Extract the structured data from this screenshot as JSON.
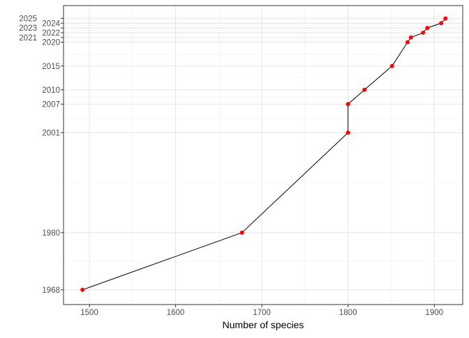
{
  "chart_data": {
    "type": "line",
    "title": "",
    "xlabel": "Number of species",
    "ylabel": "",
    "xlim": [
      1470,
      1933
    ],
    "ylim": [
      1964.9,
      2027.7
    ],
    "x_ticks": [
      1500,
      1600,
      1700,
      1800,
      1900
    ],
    "y_ticks": [
      1968,
      1980,
      2001,
      2007,
      2010,
      2015,
      2020,
      2021,
      2022,
      2023,
      2024,
      2025
    ],
    "grid": true,
    "line_color": "#000000",
    "point_color": "#ff0000",
    "points": [
      {
        "x": 1492,
        "y": 1968
      },
      {
        "x": 1677,
        "y": 1980
      },
      {
        "x": 1800,
        "y": 2001
      },
      {
        "x": 1800,
        "y": 2007
      },
      {
        "x": 1819,
        "y": 2010
      },
      {
        "x": 1851,
        "y": 2015
      },
      {
        "x": 1869,
        "y": 2020
      },
      {
        "x": 1873,
        "y": 2021
      },
      {
        "x": 1887,
        "y": 2022
      },
      {
        "x": 1892,
        "y": 2023
      },
      {
        "x": 1908,
        "y": 2024
      },
      {
        "x": 1913,
        "y": 2025
      }
    ]
  }
}
